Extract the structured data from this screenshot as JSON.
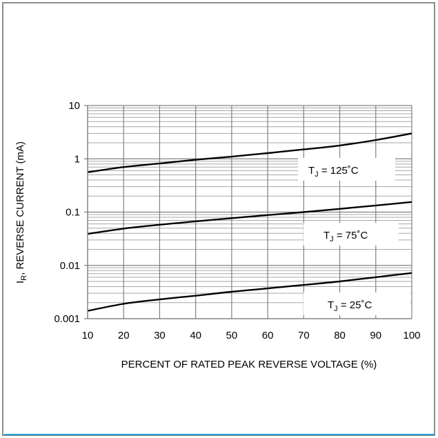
{
  "chart_data": {
    "type": "line",
    "title": "",
    "xlabel": "PERCENT OF RATED PEAK REVERSE VOLTAGE (%)",
    "ylabel": {
      "symbol": "I",
      "subscript": "R",
      "text": ", REVERSE CURRENT (mA)"
    },
    "x_scale": "linear",
    "y_scale": "log",
    "xlim": [
      10,
      100
    ],
    "ylim": [
      0.001,
      10
    ],
    "x_ticks": [
      "10",
      "20",
      "30",
      "40",
      "50",
      "60",
      "70",
      "80",
      "90",
      "100"
    ],
    "y_ticks": [
      "0.001",
      "0.01",
      "0.1",
      "1",
      "10"
    ],
    "grid": true,
    "series": [
      {
        "name": {
          "symbol": "T",
          "subscript": "J",
          "text": " = 125˚C"
        },
        "x": [
          10,
          20,
          30,
          40,
          50,
          60,
          70,
          80,
          90,
          100
        ],
        "y": [
          0.56,
          0.7,
          0.82,
          0.96,
          1.1,
          1.28,
          1.5,
          1.78,
          2.25,
          3.0
        ]
      },
      {
        "name": {
          "symbol": "T",
          "subscript": "J",
          "text": " = 75˚C"
        },
        "x": [
          10,
          20,
          30,
          40,
          50,
          60,
          70,
          80,
          90,
          100
        ],
        "y": [
          0.039,
          0.049,
          0.058,
          0.067,
          0.077,
          0.088,
          0.1,
          0.115,
          0.133,
          0.155
        ]
      },
      {
        "name": {
          "symbol": "T",
          "subscript": "J",
          "text": " = 25˚C"
        },
        "x": [
          10,
          20,
          30,
          40,
          50,
          60,
          70,
          80,
          90,
          100
        ],
        "y": [
          0.0014,
          0.0019,
          0.0023,
          0.0027,
          0.0032,
          0.0037,
          0.0043,
          0.005,
          0.006,
          0.0072
        ]
      }
    ]
  }
}
